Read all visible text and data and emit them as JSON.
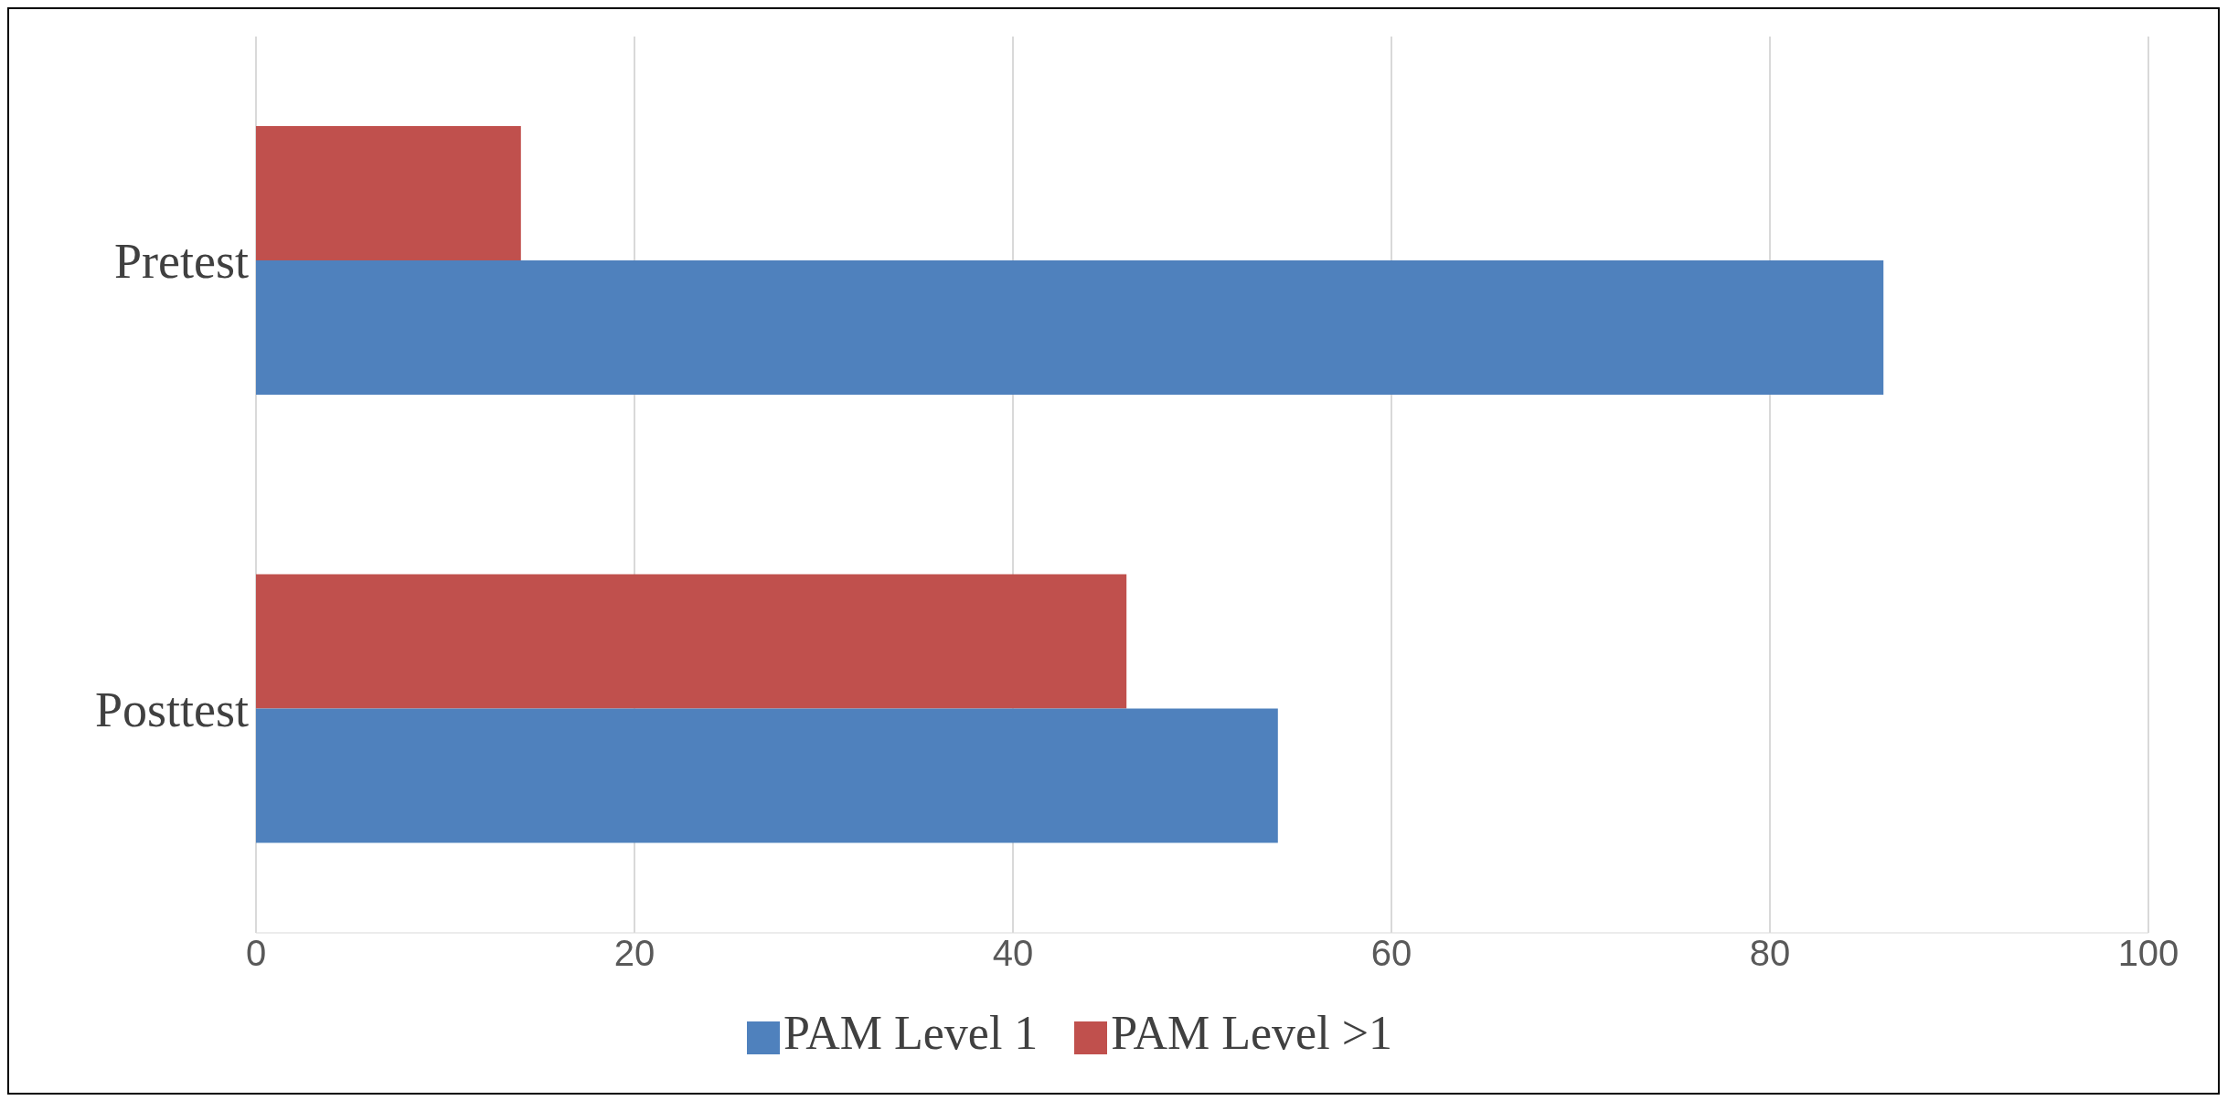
{
  "chart_data": {
    "type": "bar",
    "orientation": "horizontal",
    "categories": [
      "Pretest",
      "Posttest"
    ],
    "series": [
      {
        "name": "PAM Level >1",
        "color": "#c0504d",
        "values": [
          14,
          46
        ]
      },
      {
        "name": "PAM Level 1",
        "color": "#4f81bd",
        "values": [
          86,
          54
        ]
      }
    ],
    "xlim": [
      0,
      100
    ],
    "xticks": [
      0,
      20,
      40,
      60,
      80,
      100
    ],
    "grid": "x",
    "legend": "bottom"
  }
}
